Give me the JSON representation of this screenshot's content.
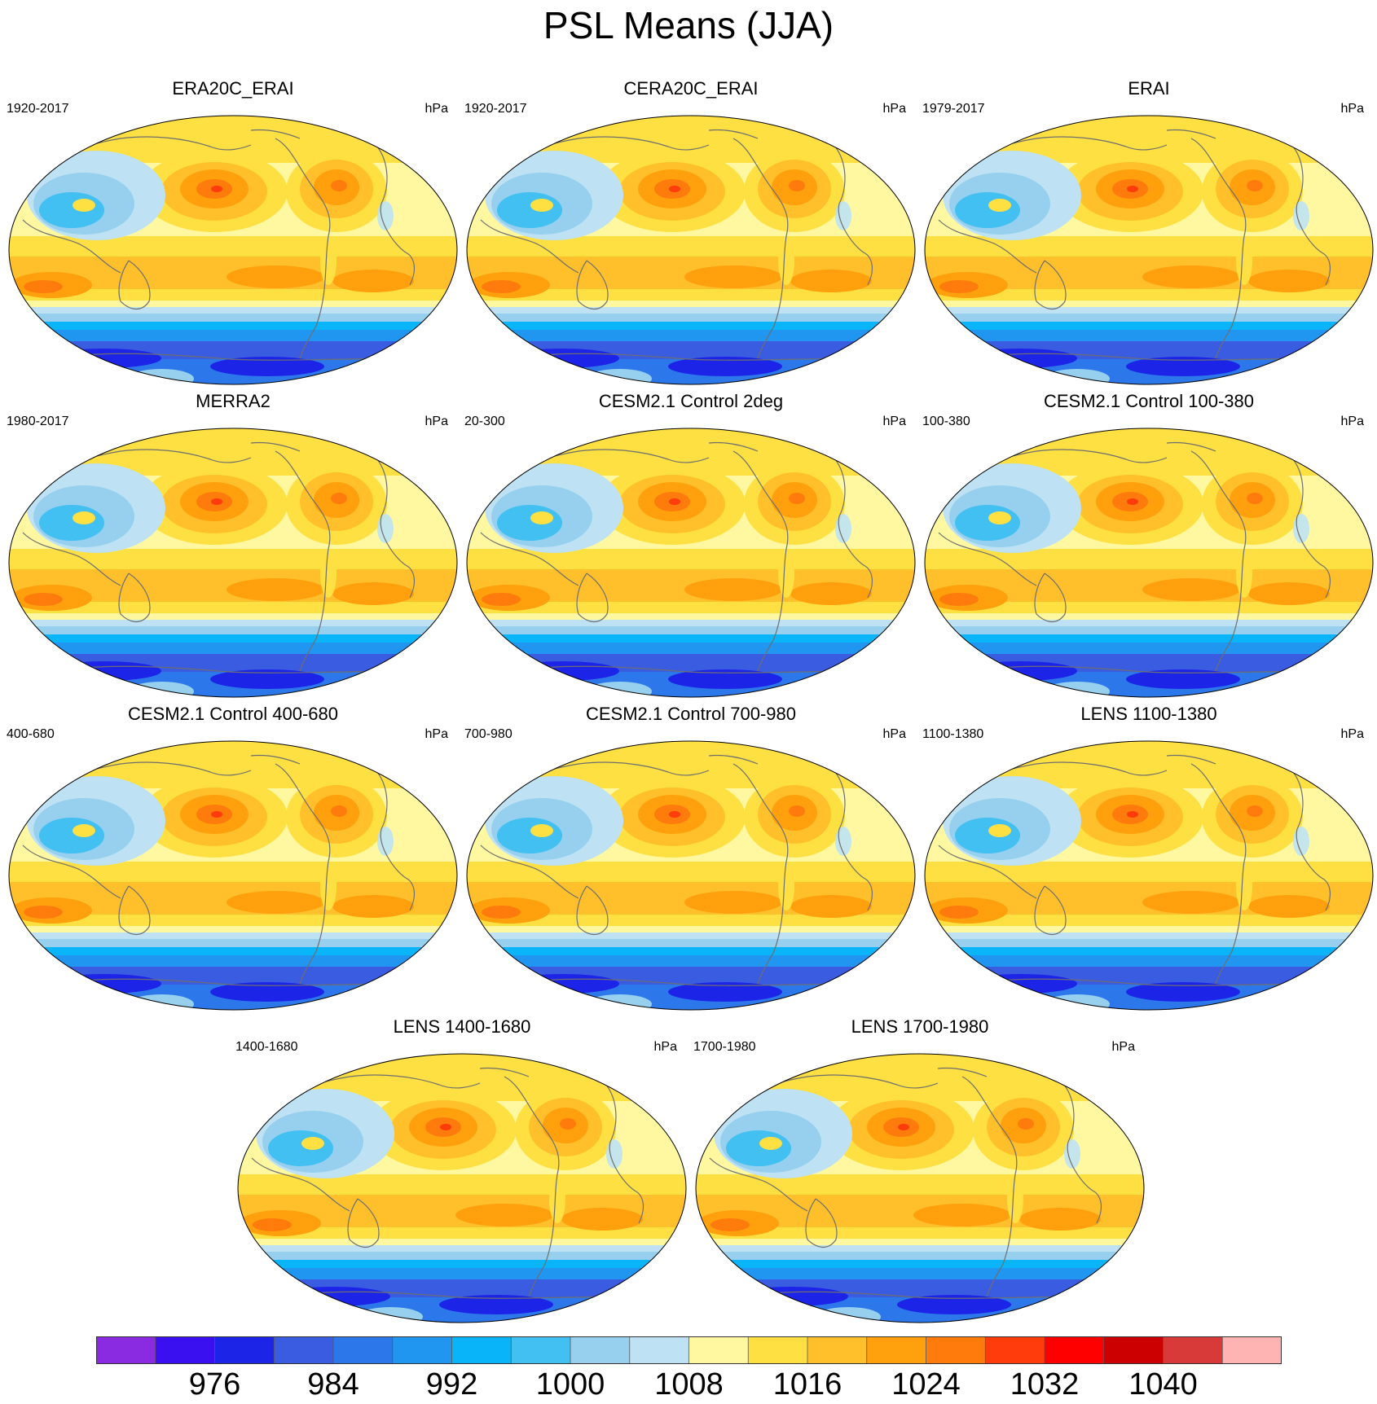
{
  "title": "PSL Means (JJA)",
  "panels": [
    {
      "title": "ERA20C_ERAI",
      "period": "1920-2017",
      "units": "hPa"
    },
    {
      "title": "CERA20C_ERAI",
      "period": "1920-2017",
      "units": "hPa"
    },
    {
      "title": "ERAI",
      "period": "1979-2017",
      "units": "hPa"
    },
    {
      "title": "MERRA2",
      "period": "1980-2017",
      "units": "hPa"
    },
    {
      "title": "CESM2.1 Control 2deg",
      "period": "20-300",
      "units": "hPa"
    },
    {
      "title": "CESM2.1 Control 100-380",
      "period": "100-380",
      "units": "hPa"
    },
    {
      "title": "CESM2.1 Control 400-680",
      "period": "400-680",
      "units": "hPa"
    },
    {
      "title": "CESM2.1 Control 700-980",
      "period": "700-980",
      "units": "hPa"
    },
    {
      "title": "LENS 1100-1380",
      "period": "1100-1380",
      "units": "hPa"
    },
    {
      "title": "LENS 1400-1680",
      "period": "1400-1680",
      "units": "hPa"
    },
    {
      "title": "LENS 1700-1980",
      "period": "1700-1980",
      "units": "hPa"
    }
  ],
  "colorbar": {
    "colors": [
      "#8a2be2",
      "#3b10f0",
      "#1c24e8",
      "#3a5ce0",
      "#2c78ea",
      "#2196f0",
      "#0ab4f8",
      "#42c0f2",
      "#96d0ee",
      "#bee2f4",
      "#fff8a0",
      "#ffe042",
      "#ffc02c",
      "#ffa00c",
      "#ff7c0c",
      "#ff3c0c",
      "#ff0000",
      "#cc0000",
      "#d83a3a",
      "#ffb4b4"
    ],
    "tick_labels": [
      "976",
      "984",
      "992",
      "1000",
      "1008",
      "1016",
      "1024",
      "1032",
      "1040"
    ]
  }
}
